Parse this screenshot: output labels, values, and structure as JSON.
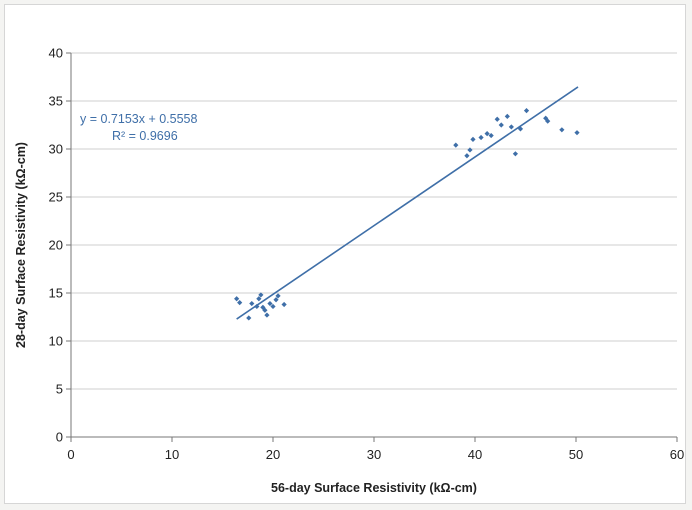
{
  "chart_data": {
    "type": "scatter",
    "xlabel": "56-day Surface Resistivity (kΩ-cm)",
    "ylabel": "28-day Surface Resistivity (kΩ-cm)",
    "xlim": [
      0,
      60
    ],
    "ylim": [
      0,
      40
    ],
    "x_ticks": [
      0,
      10,
      20,
      30,
      40,
      50,
      60
    ],
    "y_ticks": [
      0,
      5,
      10,
      15,
      20,
      25,
      30,
      35,
      40
    ],
    "x_tick_labels": [
      "0",
      "10",
      "20",
      "30",
      "40",
      "50",
      "60"
    ],
    "y_tick_labels": [
      "0",
      "5",
      "10",
      "15",
      "20",
      "25",
      "30",
      "35",
      "40"
    ],
    "grid": "horizontal",
    "legend": "none",
    "marker_color": "#3f6fa8",
    "line_color": "#3f6fa8",
    "points": [
      {
        "x": 16.4,
        "y": 14.4
      },
      {
        "x": 16.7,
        "y": 14.0
      },
      {
        "x": 17.6,
        "y": 12.4
      },
      {
        "x": 17.9,
        "y": 13.9
      },
      {
        "x": 18.4,
        "y": 13.6
      },
      {
        "x": 18.6,
        "y": 14.4
      },
      {
        "x": 18.8,
        "y": 14.8
      },
      {
        "x": 19.0,
        "y": 13.5
      },
      {
        "x": 19.2,
        "y": 13.2
      },
      {
        "x": 19.4,
        "y": 12.7
      },
      {
        "x": 19.7,
        "y": 13.9
      },
      {
        "x": 20.0,
        "y": 13.6
      },
      {
        "x": 20.3,
        "y": 14.3
      },
      {
        "x": 20.5,
        "y": 14.7
      },
      {
        "x": 21.1,
        "y": 13.8
      },
      {
        "x": 38.1,
        "y": 30.4
      },
      {
        "x": 39.2,
        "y": 29.3
      },
      {
        "x": 39.5,
        "y": 29.9
      },
      {
        "x": 39.8,
        "y": 31.0
      },
      {
        "x": 40.6,
        "y": 31.2
      },
      {
        "x": 41.2,
        "y": 31.6
      },
      {
        "x": 41.6,
        "y": 31.4
      },
      {
        "x": 42.2,
        "y": 33.1
      },
      {
        "x": 42.6,
        "y": 32.5
      },
      {
        "x": 43.2,
        "y": 33.4
      },
      {
        "x": 43.6,
        "y": 32.3
      },
      {
        "x": 44.0,
        "y": 29.5
      },
      {
        "x": 44.5,
        "y": 32.1
      },
      {
        "x": 45.1,
        "y": 34.0
      },
      {
        "x": 47.0,
        "y": 33.2
      },
      {
        "x": 47.2,
        "y": 32.9
      },
      {
        "x": 48.6,
        "y": 32.0
      },
      {
        "x": 50.1,
        "y": 31.7
      }
    ],
    "trendline": {
      "slope": 0.7153,
      "intercept": 0.5558,
      "x_range": [
        16.4,
        50.2
      ],
      "equation": "y = 0.7153x + 0.5558",
      "r_squared": "R² = 0.9696"
    }
  }
}
